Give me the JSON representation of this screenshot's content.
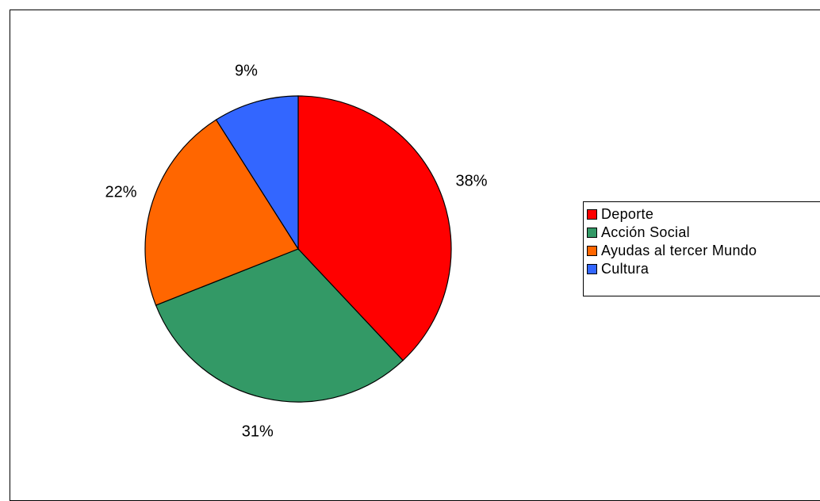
{
  "chart_data": {
    "type": "pie",
    "categories": [
      "Deporte",
      "Acción Social",
      "Ayudas al tercer Mundo",
      "Cultura"
    ],
    "values": [
      38,
      31,
      22,
      9
    ],
    "value_labels": [
      "38%",
      "31%",
      "22%",
      "9%"
    ],
    "colors": [
      "#FF0000",
      "#339966",
      "#FF6600",
      "#3366FF"
    ],
    "legend_position": "right",
    "start_angle": "top, clockwise"
  }
}
